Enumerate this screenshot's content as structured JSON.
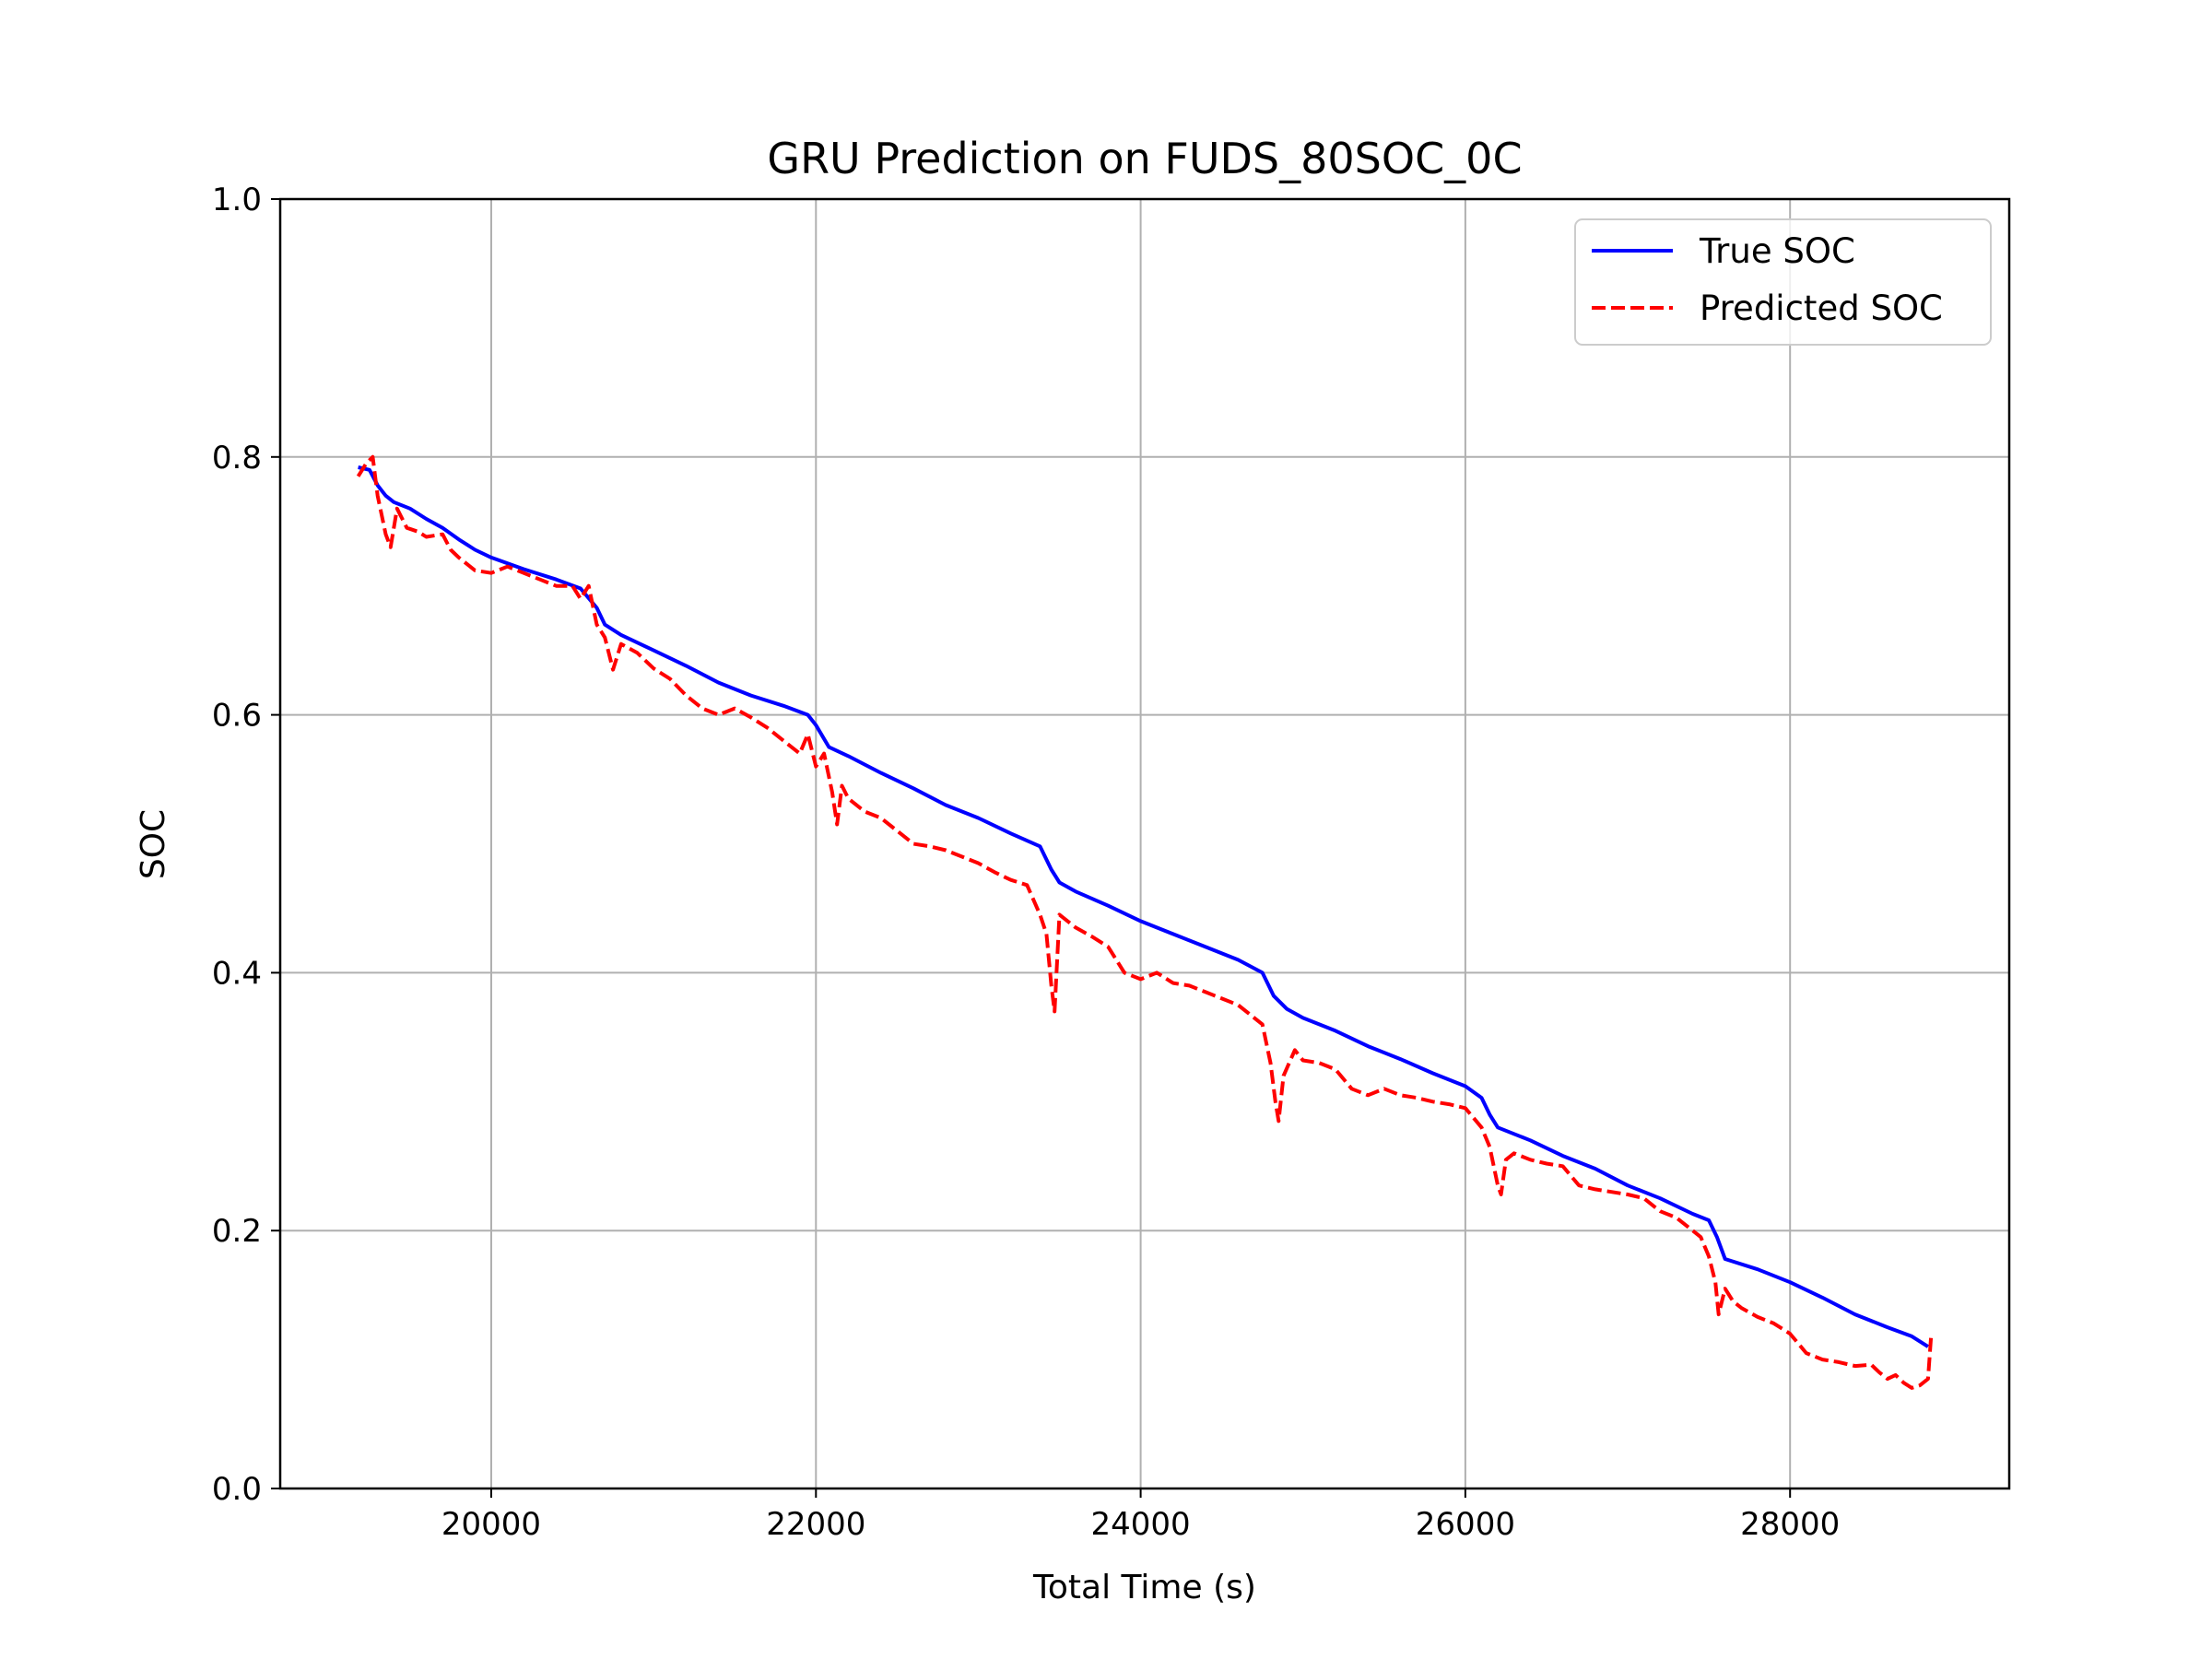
{
  "chart_data": {
    "type": "line",
    "title": "GRU Prediction on FUDS_80SOC_0C",
    "xlabel": "Total Time (s)",
    "ylabel": "SOC",
    "xlim": [
      18700,
      29350
    ],
    "ylim": [
      0,
      1
    ],
    "xticks": [
      20000,
      22000,
      24000,
      26000,
      28000
    ],
    "xtick_labels": [
      "20000",
      "22000",
      "24000",
      "26000",
      "28000"
    ],
    "yticks": [
      0,
      0.2,
      0.4,
      0.6,
      0.8,
      1.0
    ],
    "ytick_labels": [
      "0.0",
      "0.2",
      "0.4",
      "0.6",
      "0.8",
      "1.0"
    ],
    "grid": true,
    "legend_position": "upper right",
    "series": [
      {
        "name": "True SOC",
        "color": "#0000ff",
        "style": "solid",
        "x": [
          19180,
          19250,
          19300,
          19350,
          19400,
          19500,
          19600,
          19700,
          19800,
          19900,
          20000,
          20200,
          20400,
          20550,
          20650,
          20700,
          20800,
          21000,
          21200,
          21400,
          21600,
          21800,
          21950,
          22000,
          22080,
          22200,
          22400,
          22600,
          22800,
          23000,
          23200,
          23380,
          23450,
          23500,
          23600,
          23800,
          24000,
          24200,
          24400,
          24600,
          24750,
          24820,
          24900,
          25000,
          25200,
          25400,
          25600,
          25800,
          26000,
          26100,
          26150,
          26200,
          26400,
          26600,
          26800,
          27000,
          27200,
          27400,
          27500,
          27550,
          27600,
          27800,
          28000,
          28200,
          28400,
          28600,
          28750,
          28850
        ],
        "y": [
          0.792,
          0.79,
          0.778,
          0.77,
          0.765,
          0.76,
          0.752,
          0.745,
          0.736,
          0.728,
          0.722,
          0.713,
          0.705,
          0.698,
          0.683,
          0.67,
          0.662,
          0.65,
          0.638,
          0.625,
          0.615,
          0.607,
          0.6,
          0.592,
          0.575,
          0.568,
          0.555,
          0.543,
          0.53,
          0.52,
          0.508,
          0.498,
          0.48,
          0.47,
          0.463,
          0.452,
          0.44,
          0.43,
          0.42,
          0.41,
          0.4,
          0.382,
          0.372,
          0.365,
          0.355,
          0.343,
          0.333,
          0.322,
          0.312,
          0.303,
          0.29,
          0.28,
          0.27,
          0.258,
          0.248,
          0.235,
          0.225,
          0.213,
          0.208,
          0.195,
          0.178,
          0.17,
          0.16,
          0.148,
          0.135,
          0.125,
          0.118,
          0.11
        ]
      },
      {
        "name": "Predicted SOC",
        "color": "#ff0000",
        "style": "dashed",
        "x": [
          19180,
          19230,
          19270,
          19300,
          19350,
          19380,
          19420,
          19480,
          19550,
          19600,
          19700,
          19750,
          19800,
          19900,
          20000,
          20100,
          20200,
          20300,
          20400,
          20500,
          20550,
          20600,
          20650,
          20700,
          20750,
          20800,
          20900,
          21000,
          21100,
          21200,
          21300,
          21400,
          21500,
          21600,
          21700,
          21800,
          21900,
          21950,
          22000,
          22050,
          22100,
          22130,
          22160,
          22200,
          22300,
          22400,
          22500,
          22600,
          22700,
          22800,
          22900,
          23000,
          23100,
          23200,
          23300,
          23380,
          23420,
          23450,
          23470,
          23500,
          23550,
          23600,
          23700,
          23800,
          23850,
          23900,
          24000,
          24100,
          24200,
          24300,
          24400,
          24500,
          24600,
          24700,
          24750,
          24800,
          24830,
          24850,
          24880,
          24950,
          25000,
          25100,
          25200,
          25300,
          25400,
          25500,
          25600,
          25700,
          25800,
          25900,
          26000,
          26100,
          26150,
          26200,
          26220,
          26250,
          26300,
          26400,
          26500,
          26600,
          26700,
          26800,
          26900,
          27000,
          27100,
          27200,
          27300,
          27400,
          27450,
          27500,
          27540,
          27560,
          27600,
          27650,
          27700,
          27800,
          27900,
          28000,
          28100,
          28200,
          28300,
          28400,
          28500,
          28550,
          28600,
          28650,
          28700,
          28750,
          28800,
          28850,
          28870
        ],
        "y": [
          0.785,
          0.795,
          0.8,
          0.77,
          0.74,
          0.73,
          0.76,
          0.745,
          0.742,
          0.738,
          0.74,
          0.728,
          0.722,
          0.712,
          0.71,
          0.715,
          0.71,
          0.705,
          0.7,
          0.7,
          0.69,
          0.7,
          0.67,
          0.66,
          0.635,
          0.655,
          0.648,
          0.636,
          0.628,
          0.615,
          0.605,
          0.6,
          0.605,
          0.598,
          0.59,
          0.58,
          0.57,
          0.585,
          0.56,
          0.57,
          0.54,
          0.515,
          0.545,
          0.535,
          0.525,
          0.52,
          0.51,
          0.5,
          0.498,
          0.495,
          0.49,
          0.485,
          0.478,
          0.472,
          0.468,
          0.445,
          0.43,
          0.39,
          0.37,
          0.445,
          0.44,
          0.435,
          0.428,
          0.42,
          0.41,
          0.4,
          0.395,
          0.4,
          0.392,
          0.39,
          0.385,
          0.38,
          0.375,
          0.365,
          0.36,
          0.33,
          0.3,
          0.285,
          0.32,
          0.34,
          0.332,
          0.33,
          0.325,
          0.31,
          0.305,
          0.31,
          0.305,
          0.303,
          0.3,
          0.298,
          0.295,
          0.28,
          0.265,
          0.235,
          0.228,
          0.255,
          0.26,
          0.255,
          0.252,
          0.25,
          0.235,
          0.232,
          0.23,
          0.228,
          0.225,
          0.215,
          0.21,
          0.2,
          0.195,
          0.18,
          0.16,
          0.135,
          0.155,
          0.145,
          0.14,
          0.133,
          0.128,
          0.12,
          0.105,
          0.1,
          0.098,
          0.095,
          0.096,
          0.09,
          0.085,
          0.088,
          0.082,
          0.078,
          0.08,
          0.085,
          0.12
        ]
      }
    ]
  }
}
